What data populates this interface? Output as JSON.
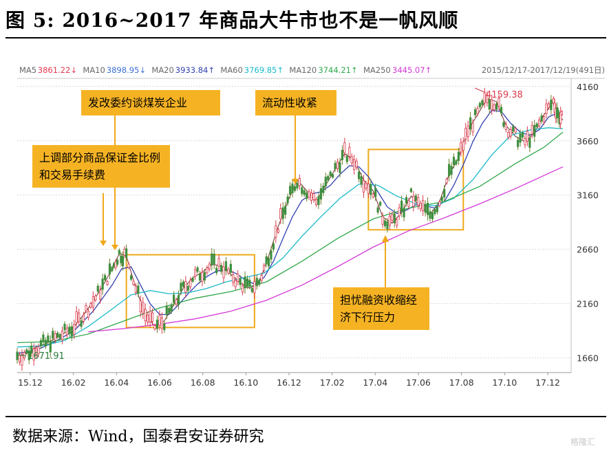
{
  "figure": {
    "title": "图 5: 2016~2017 年商品大牛市也不是一帆风顺",
    "source": "数据来源：Wind，国泰君安证券研究",
    "watermark": "格隆汇"
  },
  "legend": {
    "items": [
      {
        "name": "MA5",
        "value": "3861.22↓",
        "color": "#e23a4e"
      },
      {
        "name": "MA10",
        "value": "3898.95↓",
        "color": "#3a6fd8"
      },
      {
        "name": "MA20",
        "value": "3933.84↑",
        "color": "#2f3fb0"
      },
      {
        "name": "MA60",
        "value": "3769.85↑",
        "color": "#19b9c9"
      },
      {
        "name": "MA120",
        "value": "3744.21↑",
        "color": "#2ea84a"
      },
      {
        "name": "MA250",
        "value": "3445.07↑",
        "color": "#d438d6"
      }
    ],
    "range_label": "2015/12/17-2017/12/19(491日)"
  },
  "annotations": {
    "box1": "上调部分商品保证金比例和交易手续费",
    "box2": "发改委约谈煤炭企业",
    "box3": "流动性收紧",
    "box4": "担忧融资收缩经济下行压力"
  },
  "chart_data": {
    "type": "line",
    "title": "",
    "xlabel": "",
    "ylabel": "",
    "ylim": [
      1550,
      4260
    ],
    "yticks": [
      1660,
      2160,
      2660,
      3160,
      3660,
      4160
    ],
    "xticks": [
      "15.12",
      "16.02",
      "16.04",
      "16.06",
      "16.08",
      "16.10",
      "16.12",
      "17.02",
      "17.04",
      "17.06",
      "17.08",
      "17.10",
      "17.12"
    ],
    "grid": true,
    "labels": {
      "min": "1671.91",
      "max": "4159.38"
    },
    "series": [
      {
        "name": "收盘",
        "color": "#7a3d3d",
        "points": [
          [
            0,
            1680
          ],
          [
            4,
            1700
          ],
          [
            8,
            1760
          ],
          [
            12,
            1790
          ],
          [
            16,
            1840
          ],
          [
            20,
            1890
          ],
          [
            24,
            1950
          ],
          [
            28,
            2060
          ],
          [
            32,
            2180
          ],
          [
            36,
            2320
          ],
          [
            40,
            2480
          ],
          [
            43,
            2620
          ],
          [
            46,
            2600
          ],
          [
            50,
            2300
          ],
          [
            54,
            2060
          ],
          [
            58,
            1950
          ],
          [
            62,
            2000
          ],
          [
            66,
            2150
          ],
          [
            70,
            2300
          ],
          [
            74,
            2400
          ],
          [
            78,
            2450
          ],
          [
            82,
            2520
          ],
          [
            86,
            2510
          ],
          [
            90,
            2430
          ],
          [
            94,
            2350
          ],
          [
            98,
            2300
          ],
          [
            102,
            2360
          ],
          [
            106,
            2600
          ],
          [
            110,
            2870
          ],
          [
            114,
            3100
          ],
          [
            118,
            3300
          ],
          [
            122,
            3200
          ],
          [
            126,
            3100
          ],
          [
            130,
            3250
          ],
          [
            134,
            3400
          ],
          [
            138,
            3540
          ],
          [
            142,
            3480
          ],
          [
            146,
            3300
          ],
          [
            150,
            3200
          ],
          [
            154,
            2960
          ],
          [
            158,
            2900
          ],
          [
            162,
            3000
          ],
          [
            166,
            3150
          ],
          [
            170,
            3050
          ],
          [
            174,
            2980
          ],
          [
            178,
            3100
          ],
          [
            182,
            3350
          ],
          [
            186,
            3500
          ],
          [
            190,
            3760
          ],
          [
            194,
            3900
          ],
          [
            198,
            4050
          ],
          [
            202,
            4020
          ],
          [
            206,
            3800
          ],
          [
            210,
            3700
          ],
          [
            214,
            3650
          ],
          [
            218,
            3730
          ],
          [
            222,
            3900
          ],
          [
            226,
            4020
          ],
          [
            228,
            3900
          ],
          [
            230,
            3850
          ]
        ]
      },
      {
        "name": "MA20",
        "color": "#2f3fb0",
        "points": [
          [
            0,
            1700
          ],
          [
            8,
            1730
          ],
          [
            16,
            1810
          ],
          [
            24,
            1910
          ],
          [
            32,
            2090
          ],
          [
            40,
            2330
          ],
          [
            44,
            2480
          ],
          [
            48,
            2500
          ],
          [
            52,
            2330
          ],
          [
            56,
            2160
          ],
          [
            60,
            2060
          ],
          [
            64,
            2060
          ],
          [
            68,
            2150
          ],
          [
            72,
            2250
          ],
          [
            76,
            2340
          ],
          [
            80,
            2410
          ],
          [
            84,
            2460
          ],
          [
            88,
            2470
          ],
          [
            92,
            2440
          ],
          [
            96,
            2380
          ],
          [
            100,
            2340
          ],
          [
            104,
            2400
          ],
          [
            108,
            2550
          ],
          [
            112,
            2760
          ],
          [
            116,
            2960
          ],
          [
            120,
            3110
          ],
          [
            124,
            3170
          ],
          [
            128,
            3190
          ],
          [
            132,
            3250
          ],
          [
            136,
            3350
          ],
          [
            140,
            3430
          ],
          [
            144,
            3420
          ],
          [
            148,
            3330
          ],
          [
            152,
            3190
          ],
          [
            156,
            3050
          ],
          [
            160,
            2990
          ],
          [
            164,
            3020
          ],
          [
            168,
            3070
          ],
          [
            172,
            3060
          ],
          [
            176,
            3040
          ],
          [
            180,
            3100
          ],
          [
            184,
            3250
          ],
          [
            188,
            3440
          ],
          [
            192,
            3650
          ],
          [
            196,
            3820
          ],
          [
            200,
            3940
          ],
          [
            204,
            3930
          ],
          [
            208,
            3820
          ],
          [
            212,
            3740
          ],
          [
            216,
            3710
          ],
          [
            220,
            3760
          ],
          [
            224,
            3880
          ],
          [
            228,
            3920
          ],
          [
            230,
            3900
          ]
        ]
      },
      {
        "name": "MA60",
        "color": "#19b9c9",
        "points": [
          [
            0,
            1760
          ],
          [
            10,
            1770
          ],
          [
            20,
            1820
          ],
          [
            30,
            1950
          ],
          [
            40,
            2110
          ],
          [
            48,
            2240
          ],
          [
            56,
            2280
          ],
          [
            64,
            2250
          ],
          [
            72,
            2260
          ],
          [
            80,
            2300
          ],
          [
            88,
            2360
          ],
          [
            96,
            2400
          ],
          [
            104,
            2440
          ],
          [
            112,
            2580
          ],
          [
            120,
            2780
          ],
          [
            128,
            2960
          ],
          [
            136,
            3130
          ],
          [
            144,
            3260
          ],
          [
            152,
            3250
          ],
          [
            160,
            3150
          ],
          [
            168,
            3080
          ],
          [
            176,
            3060
          ],
          [
            184,
            3130
          ],
          [
            192,
            3300
          ],
          [
            200,
            3530
          ],
          [
            208,
            3710
          ],
          [
            216,
            3760
          ],
          [
            224,
            3780
          ],
          [
            230,
            3770
          ]
        ]
      },
      {
        "name": "MA120",
        "color": "#2ea84a",
        "points": [
          [
            0,
            1800
          ],
          [
            15,
            1810
          ],
          [
            30,
            1880
          ],
          [
            45,
            2000
          ],
          [
            60,
            2120
          ],
          [
            75,
            2210
          ],
          [
            90,
            2270
          ],
          [
            105,
            2360
          ],
          [
            120,
            2550
          ],
          [
            135,
            2760
          ],
          [
            150,
            2940
          ],
          [
            165,
            3040
          ],
          [
            180,
            3100
          ],
          [
            195,
            3240
          ],
          [
            210,
            3450
          ],
          [
            222,
            3600
          ],
          [
            230,
            3740
          ]
        ]
      },
      {
        "name": "MA250",
        "color": "#d438d6",
        "points": [
          [
            30,
            1900
          ],
          [
            45,
            1930
          ],
          [
            60,
            1970
          ],
          [
            75,
            2020
          ],
          [
            90,
            2090
          ],
          [
            105,
            2190
          ],
          [
            120,
            2330
          ],
          [
            135,
            2500
          ],
          [
            150,
            2680
          ],
          [
            165,
            2830
          ],
          [
            180,
            2950
          ],
          [
            195,
            3080
          ],
          [
            210,
            3220
          ],
          [
            222,
            3340
          ],
          [
            230,
            3420
          ]
        ]
      }
    ],
    "boxes": [
      {
        "x": [
          46,
          100
        ],
        "y": [
          1940,
          2610
        ]
      },
      {
        "x": [
          148,
          188
        ],
        "y": [
          2840,
          3580
        ]
      },
      {
        "x": [
          187,
          207
        ],
        "y": [
          3960,
          4200
        ]
      }
    ]
  }
}
